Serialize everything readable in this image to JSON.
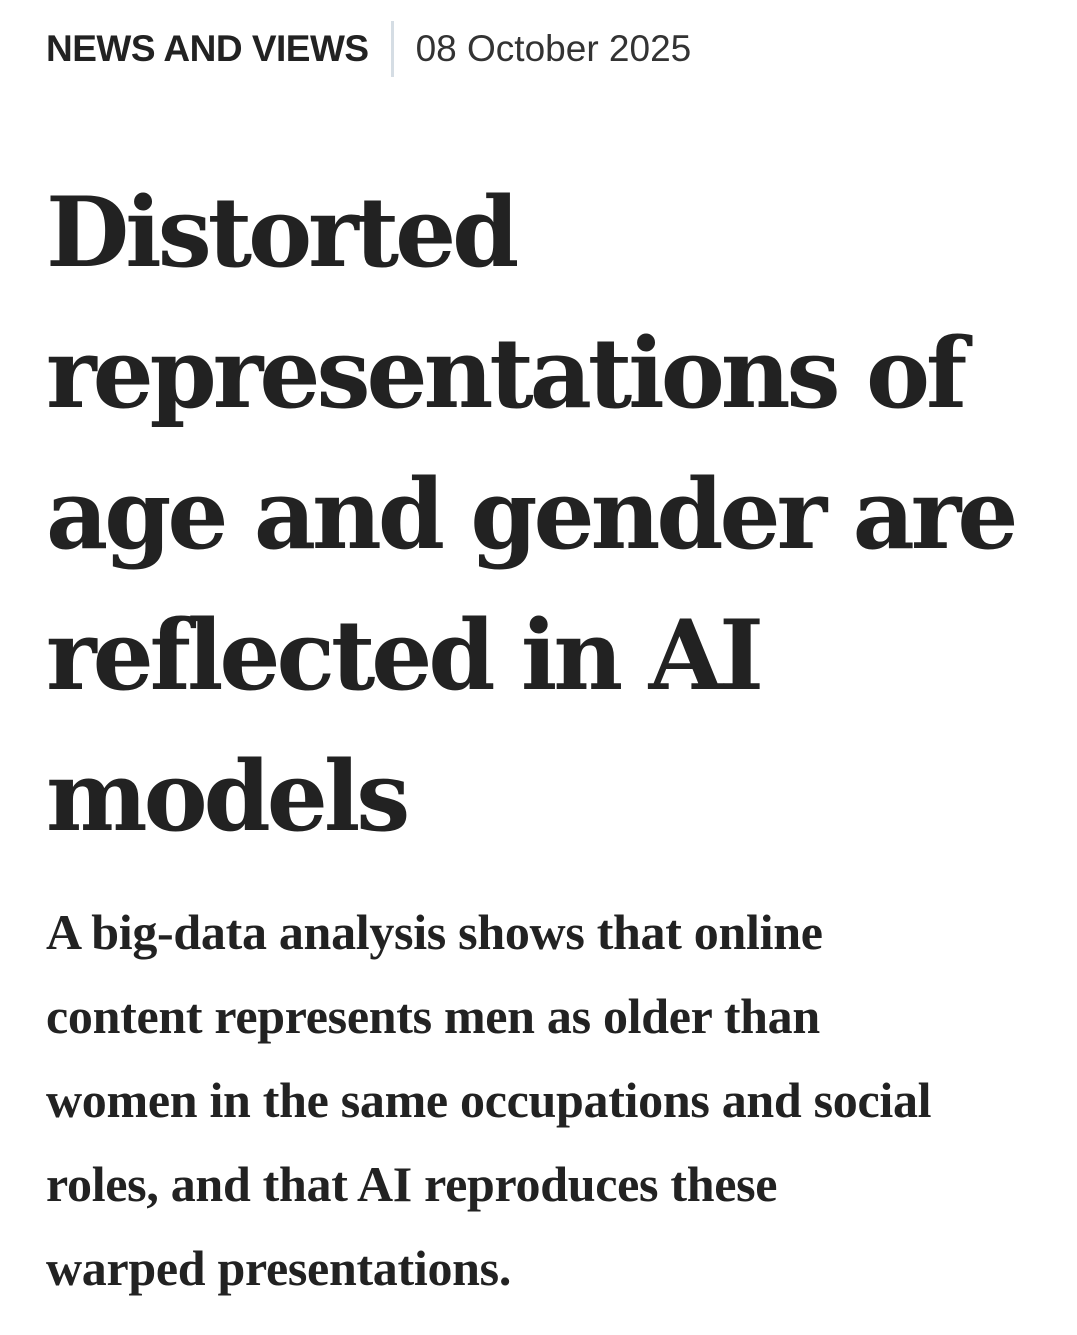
{
  "meta": {
    "article_type": "NEWS AND VIEWS",
    "date": "08 October 2025"
  },
  "title": {
    "lines": [
      "Distorted",
      "representations of",
      "age and gender are",
      "reflected in AI",
      "models"
    ]
  },
  "standfirst": {
    "lines": [
      "A big-data analysis shows that online",
      "content represents men as older than",
      "women in the same occupations and social",
      "roles, and that AI reproduces these",
      "warped presentations."
    ]
  },
  "colors": {
    "text": "#222222",
    "divider": "#d5dde4",
    "background": "#ffffff"
  }
}
